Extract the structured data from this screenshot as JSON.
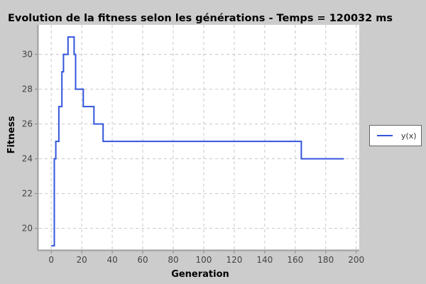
{
  "chart_data": {
    "type": "line",
    "title": "Evolution de la fitness selon les générations - Temps = 120032 ms",
    "xlabel": "Generation",
    "ylabel": "Fitness",
    "xlim": [
      -8,
      202
    ],
    "ylim": [
      18.8,
      31.7
    ],
    "xticks": [
      0,
      20,
      40,
      60,
      80,
      100,
      120,
      140,
      160,
      180,
      200
    ],
    "yticks": [
      20,
      22,
      24,
      26,
      28,
      30
    ],
    "grid": true,
    "legend_position": "right",
    "series": [
      {
        "name": "y(x)",
        "color": "#3355dd",
        "step": true,
        "x": [
          0,
          2,
          3,
          4,
          5,
          7,
          8,
          9,
          10,
          11,
          14,
          15,
          16,
          20,
          21,
          27,
          28,
          33,
          34,
          163,
          164,
          192
        ],
        "y": [
          19,
          24,
          25,
          25,
          27,
          29,
          30,
          30,
          30,
          31,
          31,
          30,
          28,
          28,
          27,
          27,
          26,
          26,
          25,
          25,
          24,
          24
        ]
      }
    ]
  }
}
